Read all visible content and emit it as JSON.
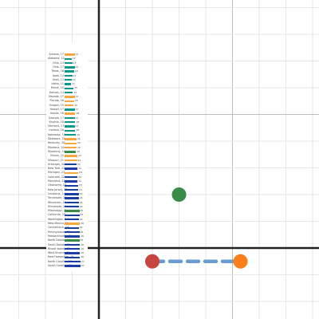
{
  "graph": {
    "points": [
      {
        "name": "green-point",
        "color": "#388c46",
        "x": 3,
        "y": 2
      },
      {
        "name": "red-point",
        "color": "#c74440",
        "x": 2,
        "y": -0.5
      },
      {
        "name": "orange-point",
        "color": "#fa7e19",
        "x": 5.3,
        "y": -0.5
      }
    ],
    "segment": {
      "from": [
        2,
        -0.5
      ],
      "to": [
        5.3,
        -0.5
      ],
      "color": "#6a9bd1",
      "style": "dashed"
    }
  },
  "card": {
    "title": "",
    "rows": [
      {
        "label": "Arizona, 17",
        "value": 17,
        "color": "#f5a742"
      },
      {
        "label": "Alabama, 12",
        "value": 12,
        "color": "#0a9a8a"
      },
      {
        "label": "Ohio, 13",
        "value": 13,
        "color": "#0a9a8a"
      },
      {
        "label": "Ohio, 17",
        "value": 17,
        "color": "#0a9a8a"
      },
      {
        "label": "Texas, 16",
        "value": 16,
        "color": "#0a9a8a"
      },
      {
        "label": "Iowa, 13",
        "value": 13,
        "color": "#0a9a8a"
      },
      {
        "label": "Utah, 12",
        "value": 12,
        "color": "#0a9a8a"
      },
      {
        "label": "Idaho, 11",
        "value": 11,
        "color": "#0a9a8a"
      },
      {
        "label": "Maine, 15",
        "value": 15,
        "color": "#0a9a8a"
      },
      {
        "label": "Kansas, 14",
        "value": 14,
        "color": "#0a9a8a"
      },
      {
        "label": "Nevada, 17",
        "value": 17,
        "color": "#f5a742"
      },
      {
        "label": "Florida, 16",
        "value": 16,
        "color": "#f5a742"
      },
      {
        "label": "Oregon, 15",
        "value": 15,
        "color": "#f5a742"
      },
      {
        "label": "Hawaii, 17",
        "value": 17,
        "color": "#0a9a8a"
      },
      {
        "label": "Alaska, 18",
        "value": 18,
        "color": "#f5a742"
      },
      {
        "label": "Georgia, 17",
        "value": 17,
        "color": "#0a9a8a"
      },
      {
        "label": "Virginia, 18",
        "value": 18,
        "color": "#0a9a8a"
      },
      {
        "label": "Vermont, 17",
        "value": 17,
        "color": "#0a9a8a"
      },
      {
        "label": "Indiana, 18",
        "value": 18,
        "color": "#0a9a8a"
      },
      {
        "label": "Nebraska, 19",
        "value": 19,
        "color": "#0a9a8a"
      },
      {
        "label": "Delaware, 20",
        "value": 20,
        "color": "#f5a742"
      },
      {
        "label": "Kentucky, 20",
        "value": 20,
        "color": "#f5a742"
      },
      {
        "label": "Montana, 20",
        "value": 20,
        "color": "#f5a742"
      },
      {
        "label": "Wyoming, 19",
        "value": 19,
        "color": "#388c46"
      },
      {
        "label": "Illinois, 22",
        "value": 22,
        "color": "#f5a742"
      },
      {
        "label": "Missouri, 21",
        "value": 21,
        "color": "#f5a742"
      },
      {
        "label": "Arkansas, 20",
        "value": 20,
        "color": "#1a3da8"
      },
      {
        "label": "New York, 22",
        "value": 22,
        "color": "#1a3da8"
      },
      {
        "label": "Michigan, 23",
        "value": 23,
        "color": "#f5a742"
      },
      {
        "label": "Colorado, 22",
        "value": 22,
        "color": "#1a3da8"
      },
      {
        "label": "Maryland, 22",
        "value": 22,
        "color": "#1a3da8"
      },
      {
        "label": "Oklahoma, 23",
        "value": 23,
        "color": "#1a3da8"
      },
      {
        "label": "New Jersey, 23",
        "value": 23,
        "color": "#1a3da8"
      },
      {
        "label": "Louisiana, 24",
        "value": 24,
        "color": "#1a3da8"
      },
      {
        "label": "Tennessee, 24",
        "value": 24,
        "color": "#1a3da8"
      },
      {
        "label": "Wisconsin, 24",
        "value": 24,
        "color": "#1a3da8"
      },
      {
        "label": "Minnesota, 24",
        "value": 24,
        "color": "#1a3da8"
      },
      {
        "label": "Mississippi, 25",
        "value": 25,
        "color": "#388c46"
      },
      {
        "label": "California, 25",
        "value": 25,
        "color": "#1a3da8"
      },
      {
        "label": "Washington, 24",
        "value": 24,
        "color": "#1a3da8"
      },
      {
        "label": "New Mexico, 26",
        "value": 26,
        "color": "#f5a742"
      },
      {
        "label": "Connecticut, 24",
        "value": 24,
        "color": "#1a3da8"
      },
      {
        "label": "Pennsylvania, 25",
        "value": 25,
        "color": "#1a3da8"
      },
      {
        "label": "Massachusetts, 26",
        "value": 26,
        "color": "#1a3da8"
      },
      {
        "label": "North Dakota, 25",
        "value": 25,
        "color": "#388c46"
      },
      {
        "label": "South Dakota, 26",
        "value": 26,
        "color": "#1a3da8"
      },
      {
        "label": "Rhode Island, 26",
        "value": 26,
        "color": "#1a3da8"
      },
      {
        "label": "West Virginia, 26",
        "value": 26,
        "color": "#1a3da8"
      },
      {
        "label": "New Hampshire, 26",
        "value": 26,
        "color": "#1a3da8"
      },
      {
        "label": "North Carolina, 27",
        "value": 27,
        "color": "#1a3da8"
      },
      {
        "label": "South Carolina, 27",
        "value": 27,
        "color": "#1a3da8"
      }
    ]
  }
}
